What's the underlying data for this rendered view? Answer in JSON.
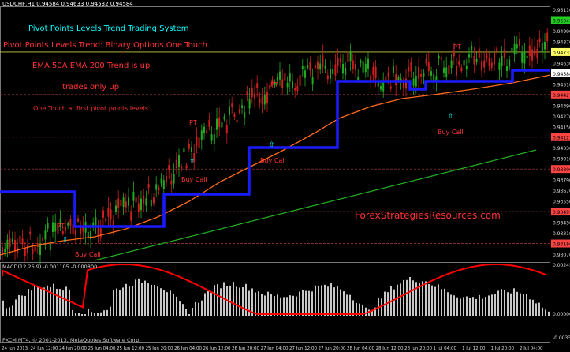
{
  "header": {
    "symbol_info": "USDCHF,H1  0.94584 0.94633 0.94532 0.94584"
  },
  "annotations": {
    "title": "Pivot Points Levels Trend Trading System",
    "subtitle": "Pivot Points Levels Trend: Binary Options One Touch.",
    "ema_note": "EMA 50A EMA 200 Trend is up",
    "trades_note": "trades only up",
    "touch_note": "One Touch at first pivot points levels",
    "brand": "ForexStrategiesResources.com",
    "pt_label": "PT",
    "buy_call_label": "Buy Call"
  },
  "macd": {
    "label": "MACD(12,26,9) -0.001105 -0.000800"
  },
  "footer": {
    "copyright": "FXCM MT4, © 2001-2013, MetaQuotes Software Corp."
  },
  "price_axis": {
    "labels": [
      "0.95110",
      "0.95047",
      "0.94990",
      "0.94870",
      "0.94732",
      "0.94630",
      "0.94584",
      "0.94510",
      "0.94427",
      "0.94390",
      "0.94270",
      "0.94150",
      "0.94121",
      "0.94030",
      "0.93910",
      "0.93806",
      "0.93790",
      "0.93670",
      "0.93550",
      "0.93491",
      "0.93430",
      "0.93310",
      "0.93186",
      "0.93070"
    ],
    "highlighted": {
      "0.95047": "#22cc22",
      "0.94732": "#ffff66",
      "0.94584": "#ffffff",
      "0.94427": "#ff4444",
      "0.94121": "#ff4444",
      "0.93806": "#ff4444",
      "0.93491": "#ff4444",
      "0.93186": "#ff4444"
    }
  },
  "macd_axis": {
    "labels": [
      "0.00245",
      "0.00000",
      "-0.00336"
    ]
  },
  "time_axis": {
    "labels": [
      "24 Jun 2013",
      "24 Jun 12:00",
      "24 Jun 20:00",
      "25 Jun 04:00",
      "25 Jun 12:00",
      "25 Jun 20:00",
      "26 Jun 04:00",
      "26 Jun 12:00",
      "26 Jun 20:00",
      "27 Jun 04:00",
      "27 Jun 12:00",
      "27 Jun 20:00",
      "28 Jun 04:00",
      "28 Jun 12:00",
      "28 Jun 20:00",
      "1 Jul 04:00",
      "1 Jul 12:00",
      "1 Jul 20:00",
      "2 Jul 04:00"
    ]
  },
  "colors": {
    "pivot_line": "#1a1aff",
    "ema50": "#ff6a1a",
    "ema200": "#22aa22",
    "bull": "#22aa22",
    "bear": "#cc1f1f",
    "macd_signal": "#ff0000",
    "macd_hist": "#c8c8c8",
    "grid": "#444",
    "buy_arrow": "#00ffff"
  }
}
